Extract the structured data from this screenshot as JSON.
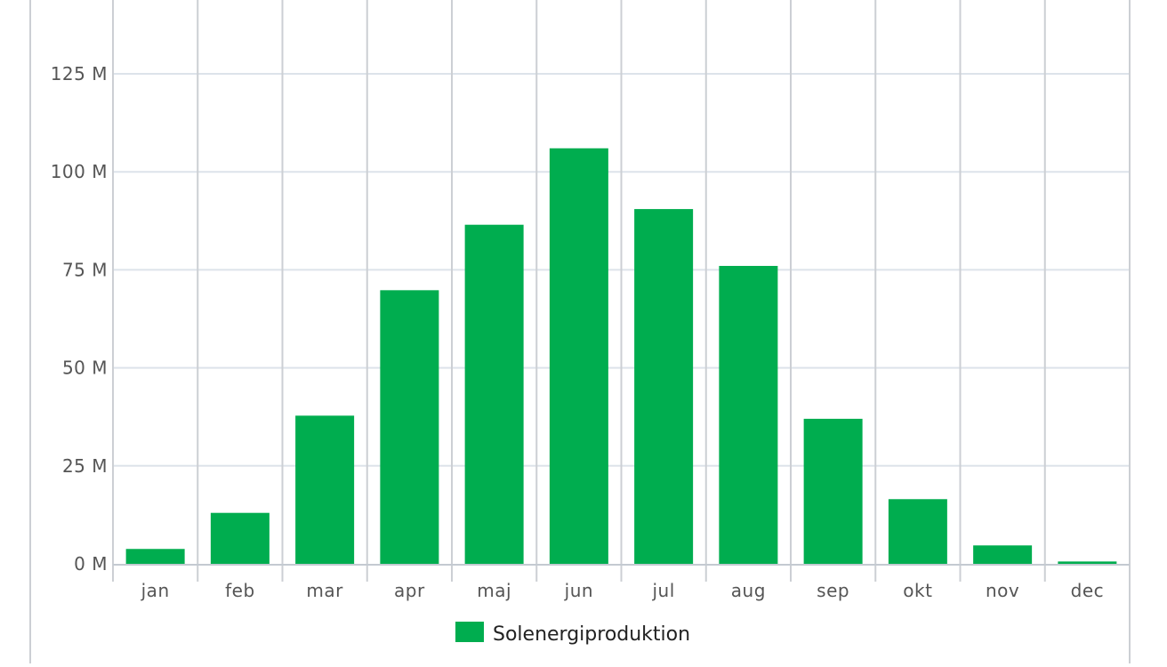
{
  "chart_data": {
    "type": "bar",
    "title": "",
    "xlabel": "",
    "ylabel": "",
    "categories": [
      "jan",
      "feb",
      "mar",
      "apr",
      "maj",
      "jun",
      "jul",
      "aug",
      "sep",
      "okt",
      "nov",
      "dec"
    ],
    "series": [
      {
        "name": "Solenergiproduktion",
        "color": "#00ad4f",
        "values": [
          3.8,
          13,
          37.8,
          69.8,
          86.5,
          106,
          90.5,
          76,
          37,
          16.5,
          4.7,
          0.6
        ]
      }
    ],
    "ylim": [
      0,
      143
    ],
    "y_ticks": [
      {
        "value": 0,
        "label": "0 M"
      },
      {
        "value": 25,
        "label": "25 M"
      },
      {
        "value": 50,
        "label": "50 M"
      },
      {
        "value": 75,
        "label": "75 M"
      },
      {
        "value": 100,
        "label": "100 M"
      },
      {
        "value": 125,
        "label": "125 M"
      }
    ],
    "grid": true,
    "legend_placement": "bottom-center"
  },
  "colors": {
    "gridline": "#dde3ea",
    "category_divider": "#cccfd4",
    "axis_line": "#c4cad1",
    "outer_frame": "#cccfd4"
  }
}
